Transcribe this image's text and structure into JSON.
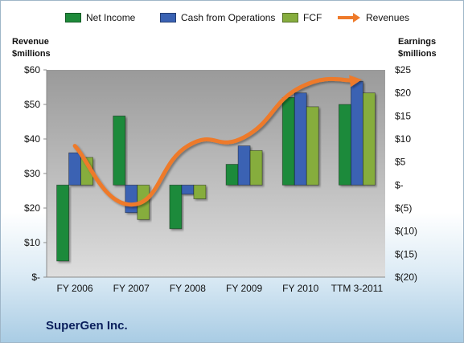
{
  "company": "SuperGen Inc.",
  "axes": {
    "left_title": [
      "Revenue",
      "$millions"
    ],
    "right_title": [
      "Earnings",
      "$millions"
    ]
  },
  "colors": {
    "net_income": "#1e8a3a",
    "cash_ops": "#3a62b3",
    "fcf": "#86ad3e",
    "revenues": "#ee7a2a",
    "plot_bg_top": "#9a9a9a",
    "plot_bg_bottom": "#dedede"
  },
  "chart_data": {
    "type": "bar",
    "categories": [
      "FY 2006",
      "FY 2007",
      "FY 2008",
      "FY 2009",
      "FY 2010",
      "TTM 3-2011"
    ],
    "series": [
      {
        "name": "Net Income",
        "axis": "right",
        "kind": "bar",
        "values": [
          -16.5,
          15,
          -9.5,
          4.5,
          19,
          17.5
        ]
      },
      {
        "name": "Cash from Operations",
        "axis": "right",
        "kind": "bar",
        "values": [
          7,
          -6,
          -2,
          8.5,
          20,
          22.5
        ]
      },
      {
        "name": "FCF",
        "axis": "right",
        "kind": "bar",
        "values": [
          6,
          -7.5,
          -3,
          7.5,
          17,
          20
        ]
      },
      {
        "name": "Revenues",
        "axis": "left",
        "kind": "line",
        "values": [
          38,
          21,
          38,
          40.5,
          55,
          57
        ]
      }
    ],
    "left_axis": {
      "ylim": [
        0,
        60
      ],
      "ticks": [
        60,
        50,
        40,
        30,
        20,
        10,
        0
      ],
      "tick_labels": [
        "$60",
        "$50",
        "$40",
        "$30",
        "$20",
        "$10",
        "$-"
      ]
    },
    "right_axis": {
      "ylim": [
        -20,
        25
      ],
      "ticks": [
        25,
        20,
        15,
        10,
        5,
        0,
        -5,
        -10,
        -15,
        -20
      ],
      "tick_labels": [
        "$25",
        "$20",
        "$15",
        "$10",
        "$5",
        "$-",
        "$(5)",
        "$(10)",
        "$(15)",
        "$(20)"
      ]
    },
    "legend_position": "top",
    "grid": false
  }
}
